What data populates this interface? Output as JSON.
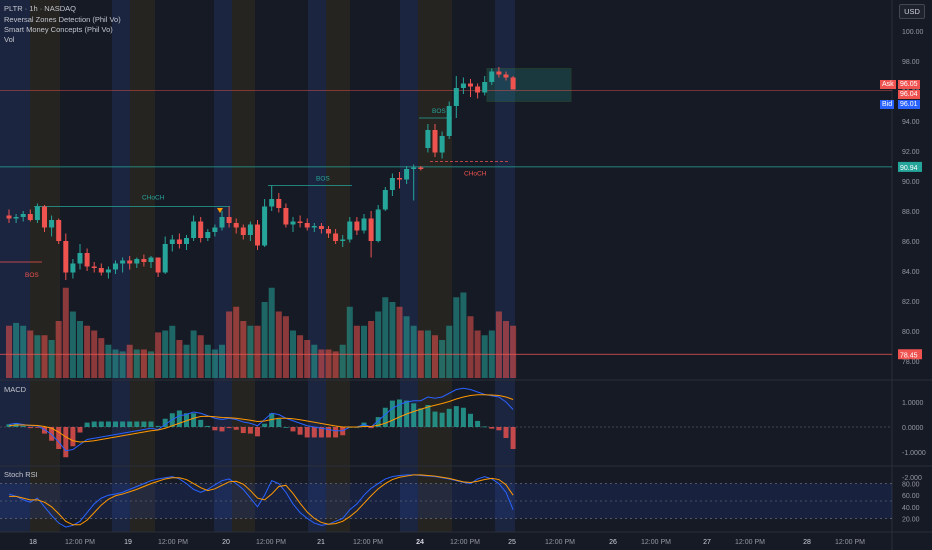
{
  "header": {
    "symbol_line": "PLTR · 1h · NASDAQ",
    "indicators": [
      "Reversal Zones Detection (Phil Vo)",
      "Smart Money Concepts (Phil Vo)",
      "Vol"
    ],
    "currency_button": "USD"
  },
  "quote": {
    "ask_label": "Ask",
    "ask": "96.05",
    "last": "96.04",
    "bid_label": "Bid",
    "bid": "96.01"
  },
  "colors": {
    "up": "#26a69a",
    "down": "#ef5350",
    "macd_line": "#2962ff",
    "signal_line": "#ff9800",
    "stoch_k": "#2962ff",
    "stoch_d": "#ff9800",
    "background": "#161a25"
  },
  "chart_data": [
    {
      "type": "candlestick",
      "title": "PLTR · 1h · NASDAQ",
      "ylim": [
        77.4,
        101.4
      ],
      "y_ticks": [
        "100.00",
        "98.00",
        "96.00",
        "94.00",
        "92.00",
        "90.00",
        "88.00",
        "86.00",
        "84.00",
        "82.00",
        "80.00",
        "78.00"
      ],
      "x_ticks": [
        "18",
        "12:00 PM",
        "19",
        "12:00 PM",
        "20",
        "12:00 PM",
        "21",
        "12:00 PM",
        "24",
        "12:00 PM",
        "25",
        "12:00 PM",
        "26",
        "12:00 PM",
        "27",
        "12:00 PM",
        "28",
        "12:00 PM"
      ],
      "candles": [
        [
          87.7,
          88.1,
          87.2,
          87.5
        ],
        [
          87.5,
          87.8,
          87.2,
          87.6
        ],
        [
          87.6,
          88.0,
          87.3,
          87.8
        ],
        [
          87.8,
          88.1,
          87.3,
          87.4
        ],
        [
          87.4,
          88.5,
          87.2,
          88.3
        ],
        [
          88.3,
          88.4,
          86.6,
          86.9
        ],
        [
          86.9,
          87.7,
          86.3,
          87.4
        ],
        [
          87.4,
          87.5,
          85.8,
          86.0
        ],
        [
          86.0,
          86.5,
          83.4,
          83.9
        ],
        [
          83.9,
          84.8,
          83.5,
          84.5
        ],
        [
          84.5,
          85.8,
          84.1,
          85.2
        ],
        [
          85.2,
          85.5,
          84.0,
          84.3
        ],
        [
          84.3,
          84.6,
          83.9,
          84.2
        ],
        [
          84.2,
          84.5,
          83.7,
          83.9
        ],
        [
          83.9,
          84.3,
          83.5,
          84.1
        ],
        [
          84.1,
          84.7,
          83.8,
          84.5
        ],
        [
          84.5,
          84.9,
          83.9,
          84.7
        ],
        [
          84.7,
          85.0,
          84.1,
          84.5
        ],
        [
          84.5,
          84.9,
          84.2,
          84.8
        ],
        [
          84.8,
          85.1,
          84.3,
          84.6
        ],
        [
          84.6,
          85.0,
          84.2,
          84.9
        ],
        [
          84.9,
          84.9,
          83.6,
          83.9
        ],
        [
          83.9,
          86.3,
          83.8,
          85.8
        ],
        [
          85.8,
          86.4,
          85.3,
          86.1
        ],
        [
          86.1,
          86.5,
          85.5,
          85.8
        ],
        [
          85.8,
          86.4,
          85.4,
          86.2
        ],
        [
          86.2,
          87.7,
          86.0,
          87.3
        ],
        [
          87.3,
          87.6,
          85.9,
          86.2
        ],
        [
          86.2,
          86.8,
          86.0,
          86.6
        ],
        [
          86.6,
          87.1,
          86.3,
          86.9
        ],
        [
          86.9,
          88.0,
          86.7,
          87.6
        ],
        [
          87.6,
          88.3,
          86.9,
          87.2
        ],
        [
          87.2,
          87.5,
          86.5,
          86.9
        ],
        [
          86.9,
          87.1,
          86.1,
          86.4
        ],
        [
          86.4,
          87.3,
          86.0,
          87.1
        ],
        [
          87.1,
          87.4,
          85.4,
          85.7
        ],
        [
          85.7,
          88.8,
          85.6,
          88.3
        ],
        [
          88.3,
          89.7,
          88.0,
          88.8
        ],
        [
          88.8,
          89.2,
          87.9,
          88.2
        ],
        [
          88.2,
          88.5,
          86.9,
          87.1
        ],
        [
          87.1,
          87.6,
          86.6,
          87.3
        ],
        [
          87.3,
          87.7,
          86.9,
          87.2
        ],
        [
          87.2,
          87.5,
          86.7,
          86.9
        ],
        [
          86.9,
          87.2,
          86.6,
          87.0
        ],
        [
          87.0,
          87.2,
          86.5,
          86.8
        ],
        [
          86.8,
          87.0,
          86.2,
          86.5
        ],
        [
          86.5,
          86.8,
          85.8,
          86.0
        ],
        [
          86.0,
          86.4,
          85.6,
          86.1
        ],
        [
          86.1,
          87.6,
          85.9,
          87.3
        ],
        [
          87.3,
          87.6,
          86.4,
          86.7
        ],
        [
          86.7,
          87.8,
          86.5,
          87.5
        ],
        [
          87.5,
          88.0,
          84.9,
          86.0
        ],
        [
          86.0,
          88.4,
          85.9,
          88.1
        ],
        [
          88.1,
          89.6,
          88.0,
          89.4
        ],
        [
          89.4,
          90.5,
          89.0,
          90.2
        ],
        [
          90.2,
          90.6,
          89.5,
          90.1
        ],
        [
          90.1,
          91.0,
          89.8,
          90.8
        ],
        [
          90.8,
          91.1,
          88.7,
          90.9
        ],
        [
          90.9,
          91.0,
          90.7,
          90.8
        ],
        [
          92.2,
          93.8,
          91.9,
          93.4
        ],
        [
          93.4,
          93.8,
          91.6,
          91.9
        ],
        [
          91.9,
          93.3,
          91.5,
          93.0
        ],
        [
          93.0,
          95.3,
          92.8,
          95.0
        ],
        [
          95.0,
          97.0,
          94.2,
          96.2
        ],
        [
          96.2,
          96.9,
          95.8,
          96.5
        ],
        [
          96.5,
          96.8,
          95.6,
          96.3
        ],
        [
          96.3,
          96.5,
          95.5,
          95.9
        ],
        [
          95.9,
          97.0,
          95.7,
          96.6
        ],
        [
          96.6,
          97.5,
          96.4,
          97.3
        ],
        [
          97.3,
          97.6,
          96.9,
          97.1
        ],
        [
          97.1,
          97.3,
          96.7,
          96.9
        ],
        [
          96.9,
          97.0,
          96.1,
          96.1
        ]
      ],
      "annotations": [
        {
          "text": "BOS",
          "level": 84.6
        },
        {
          "text": "CHoCH",
          "level": 88.3
        },
        {
          "text": "BOS",
          "level": 89.7
        },
        {
          "text": "BOS",
          "level": 94.2
        },
        {
          "text": "CHoCH",
          "level": 91.3
        }
      ],
      "horizontal_lines": [
        {
          "label": "90.94",
          "value": 90.94,
          "color": "#26a69a"
        },
        {
          "label": "78.45",
          "value": 78.45,
          "color": "#ef5350"
        }
      ],
      "zone": {
        "from": 95.3,
        "to": 97.5
      },
      "volume": [
        0.55,
        0.58,
        0.55,
        0.5,
        0.45,
        0.45,
        0.4,
        0.6,
        0.95,
        0.7,
        0.6,
        0.55,
        0.5,
        0.42,
        0.35,
        0.3,
        0.28,
        0.35,
        0.3,
        0.3,
        0.28,
        0.48,
        0.5,
        0.55,
        0.4,
        0.35,
        0.5,
        0.45,
        0.35,
        0.3,
        0.35,
        0.7,
        0.75,
        0.6,
        0.55,
        0.55,
        0.8,
        0.95,
        0.7,
        0.65,
        0.5,
        0.45,
        0.4,
        0.35,
        0.3,
        0.3,
        0.28,
        0.35,
        0.75,
        0.55,
        0.55,
        0.6,
        0.7,
        0.85,
        0.8,
        0.75,
        0.65,
        0.55,
        0.5,
        0.5,
        0.45,
        0.4,
        0.55,
        0.85,
        0.9,
        0.65,
        0.5,
        0.45,
        0.5,
        0.7,
        0.6,
        0.55
      ]
    },
    {
      "type": "line",
      "title": "MACD",
      "ylim": [
        -1.4,
        1.6
      ],
      "y_ticks": [
        "1.0000",
        "0.0000",
        "-1.0000",
        "-2.000"
      ],
      "series": [
        {
          "values": [
            0.1,
            0.15,
            0.1,
            0.05,
            0.05,
            -0.1,
            -0.3,
            -0.6,
            -0.95,
            -0.9,
            -0.7,
            -0.5,
            -0.45,
            -0.4,
            -0.35,
            -0.3,
            -0.25,
            -0.2,
            -0.15,
            -0.1,
            -0.05,
            -0.1,
            0.1,
            0.3,
            0.45,
            0.5,
            0.6,
            0.55,
            0.45,
            0.35,
            0.3,
            0.35,
            0.3,
            0.2,
            0.15,
            0.05,
            0.3,
            0.55,
            0.5,
            0.35,
            0.25,
            0.15,
            0.05,
            0.0,
            -0.05,
            -0.1,
            -0.15,
            -0.15,
            0.0,
            0.0,
            0.1,
            0.0,
            0.25,
            0.5,
            0.75,
            0.9,
            1.0,
            1.05,
            1.05,
            1.2,
            1.15,
            1.2,
            1.35,
            1.5,
            1.55,
            1.5,
            1.4,
            1.3,
            1.25,
            1.2,
            1.0,
            0.7
          ]
        },
        {
          "values": [
            0.05,
            0.08,
            0.08,
            0.07,
            0.06,
            0.02,
            -0.05,
            -0.2,
            -0.4,
            -0.55,
            -0.6,
            -0.58,
            -0.55,
            -0.5,
            -0.45,
            -0.4,
            -0.35,
            -0.3,
            -0.25,
            -0.2,
            -0.15,
            -0.12,
            -0.05,
            0.05,
            0.15,
            0.25,
            0.35,
            0.42,
            0.43,
            0.41,
            0.38,
            0.37,
            0.35,
            0.31,
            0.27,
            0.22,
            0.24,
            0.3,
            0.35,
            0.35,
            0.33,
            0.29,
            0.24,
            0.19,
            0.14,
            0.09,
            0.04,
            0.0,
            0.0,
            0.0,
            0.02,
            0.02,
            0.07,
            0.15,
            0.27,
            0.4,
            0.52,
            0.62,
            0.71,
            0.8,
            0.87,
            0.94,
            1.02,
            1.12,
            1.2,
            1.26,
            1.29,
            1.29,
            1.28,
            1.26,
            1.2,
            1.1
          ]
        }
      ]
    },
    {
      "type": "line",
      "title": "Stoch RSI",
      "ylim": [
        0,
        100
      ],
      "y_ticks": [
        "80.00",
        "60.00",
        "40.00",
        "20.00"
      ],
      "series": [
        {
          "values": [
            62,
            58,
            52,
            48,
            55,
            40,
            25,
            12,
            5,
            8,
            15,
            30,
            45,
            55,
            60,
            62,
            65,
            70,
            75,
            80,
            85,
            88,
            90,
            92,
            88,
            80,
            70,
            65,
            70,
            78,
            85,
            88,
            80,
            70,
            55,
            40,
            60,
            85,
            80,
            65,
            45,
            30,
            20,
            12,
            8,
            10,
            15,
            20,
            35,
            45,
            60,
            72,
            80,
            88,
            92,
            94,
            95,
            95,
            94,
            93,
            92,
            90,
            88,
            85,
            82,
            80,
            88,
            92,
            88,
            80,
            65,
            35
          ]
        },
        {
          "values": [
            58,
            58,
            55,
            52,
            52,
            48,
            40,
            28,
            15,
            9,
            9,
            17,
            30,
            43,
            53,
            59,
            62,
            66,
            70,
            75,
            80,
            84,
            88,
            90,
            90,
            87,
            80,
            73,
            68,
            71,
            77,
            83,
            84,
            79,
            68,
            55,
            52,
            62,
            75,
            77,
            63,
            46,
            31,
            20,
            13,
            10,
            11,
            15,
            23,
            33,
            46,
            59,
            71,
            80,
            87,
            91,
            93,
            95,
            95,
            94,
            93,
            91,
            89,
            86,
            83,
            82,
            84,
            87,
            89,
            87,
            78,
            60
          ]
        }
      ]
    }
  ]
}
